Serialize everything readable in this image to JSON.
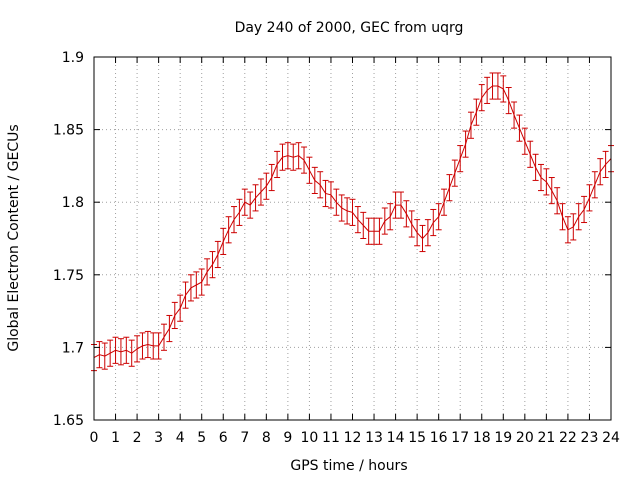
{
  "chart_data": {
    "type": "line",
    "title": "Day 240 of 2000, GEC from uqrg",
    "xlabel": "GPS time / hours",
    "ylabel": "Global Electron Content / GECUs",
    "xlim": [
      0,
      24
    ],
    "ylim": [
      1.65,
      1.9
    ],
    "grid": true,
    "xticks": [
      "0",
      "1",
      "2",
      "3",
      "4",
      "5",
      "6",
      "7",
      "8",
      "9",
      "10",
      "11",
      "12",
      "13",
      "14",
      "15",
      "16",
      "17",
      "18",
      "19",
      "20",
      "21",
      "22",
      "23",
      "24"
    ],
    "yticks": [
      "1.65",
      "1.7",
      "1.75",
      "1.8",
      "1.85",
      "1.9"
    ],
    "series_color": "#cc0000",
    "error": 0.009,
    "x": [
      0,
      0.25,
      0.5,
      0.75,
      1,
      1.25,
      1.5,
      1.75,
      2,
      2.25,
      2.5,
      2.75,
      3,
      3.25,
      3.5,
      3.75,
      4,
      4.25,
      4.5,
      4.75,
      5,
      5.25,
      5.5,
      5.75,
      6,
      6.25,
      6.5,
      6.75,
      7,
      7.25,
      7.5,
      7.75,
      8,
      8.25,
      8.5,
      8.75,
      9,
      9.25,
      9.5,
      9.75,
      10,
      10.25,
      10.5,
      10.75,
      11,
      11.25,
      11.5,
      11.75,
      12,
      12.25,
      12.5,
      12.75,
      13,
      13.25,
      13.5,
      13.75,
      14,
      14.25,
      14.5,
      14.75,
      15,
      15.25,
      15.5,
      15.75,
      16,
      16.25,
      16.5,
      16.75,
      17,
      17.25,
      17.5,
      17.75,
      18,
      18.25,
      18.5,
      18.75,
      19,
      19.25,
      19.5,
      19.75,
      20,
      20.25,
      20.5,
      20.75,
      21,
      21.25,
      21.5,
      21.75,
      22,
      22.25,
      22.5,
      22.75,
      23,
      23.25,
      23.5,
      23.75,
      24
    ],
    "y": [
      1.693,
      1.695,
      1.694,
      1.696,
      1.698,
      1.697,
      1.698,
      1.696,
      1.699,
      1.701,
      1.702,
      1.701,
      1.701,
      1.707,
      1.713,
      1.722,
      1.727,
      1.736,
      1.741,
      1.743,
      1.745,
      1.752,
      1.757,
      1.764,
      1.773,
      1.781,
      1.788,
      1.793,
      1.8,
      1.798,
      1.803,
      1.807,
      1.811,
      1.817,
      1.826,
      1.831,
      1.832,
      1.831,
      1.832,
      1.829,
      1.822,
      1.815,
      1.812,
      1.806,
      1.805,
      1.8,
      1.796,
      1.794,
      1.793,
      1.788,
      1.784,
      1.78,
      1.78,
      1.78,
      1.787,
      1.79,
      1.798,
      1.798,
      1.792,
      1.785,
      1.779,
      1.775,
      1.779,
      1.786,
      1.79,
      1.8,
      1.81,
      1.82,
      1.83,
      1.84,
      1.853,
      1.862,
      1.872,
      1.877,
      1.88,
      1.88,
      1.878,
      1.87,
      1.86,
      1.851,
      1.842,
      1.833,
      1.824,
      1.817,
      1.814,
      1.808,
      1.801,
      1.79,
      1.781,
      1.783,
      1.79,
      1.795,
      1.803,
      1.812,
      1.821,
      1.826,
      1.83
    ]
  }
}
